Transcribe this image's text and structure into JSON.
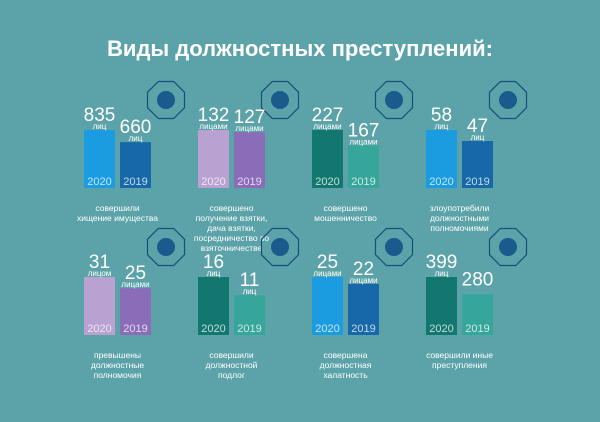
{
  "title": "Виды должностных преступлений:",
  "chart_data": [
    {
      "type": "bar",
      "categories": [
        "2020",
        "2019"
      ],
      "values": [
        835,
        660
      ],
      "units": [
        "лиц",
        "лиц"
      ],
      "colors": [
        "#1b9ce0",
        "#1668a8"
      ],
      "caption": [
        "совершили",
        "хищение имущества"
      ]
    },
    {
      "type": "bar",
      "categories": [
        "2020",
        "2019"
      ],
      "values": [
        132,
        127
      ],
      "units": [
        "лицами",
        "лицами"
      ],
      "colors": [
        "#b9a1d2",
        "#8a6cb9"
      ],
      "caption": [
        "совершено",
        "получение взятки,",
        "дача взятки,",
        "посредничество во",
        "взяточничестве"
      ]
    },
    {
      "type": "bar",
      "categories": [
        "2020",
        "2019"
      ],
      "values": [
        227,
        167
      ],
      "units": [
        "лицами",
        "лицами"
      ],
      "colors": [
        "#12776e",
        "#36a69b"
      ],
      "caption": [
        "совершено",
        "мошенничество"
      ]
    },
    {
      "type": "bar",
      "categories": [
        "2020",
        "2019"
      ],
      "values": [
        58,
        47
      ],
      "units": [
        "лиц",
        "лиц"
      ],
      "colors": [
        "#1b9ce0",
        "#1668a8"
      ],
      "caption": [
        "злоупотребили",
        "должностными",
        "полномочиями"
      ]
    },
    {
      "type": "bar",
      "categories": [
        "2020",
        "2019"
      ],
      "values": [
        31,
        25
      ],
      "units": [
        "лицом",
        "лицами"
      ],
      "colors": [
        "#b9a1d2",
        "#8a6cb9"
      ],
      "caption": [
        "превышены",
        "должностные",
        "полномочия"
      ]
    },
    {
      "type": "bar",
      "categories": [
        "2020",
        "2019"
      ],
      "values": [
        16,
        11
      ],
      "units": [
        "лиц",
        "лиц"
      ],
      "colors": [
        "#12776e",
        "#36a69b"
      ],
      "caption": [
        "совершили",
        "должностной",
        "подлог"
      ]
    },
    {
      "type": "bar",
      "categories": [
        "2020",
        "2019"
      ],
      "values": [
        25,
        22
      ],
      "units": [
        "лицами",
        "лицами"
      ],
      "colors": [
        "#1b9ce0",
        "#1668a8"
      ],
      "caption": [
        "совершена",
        "должностная",
        "халатность"
      ]
    },
    {
      "type": "bar",
      "categories": [
        "2020",
        "2019"
      ],
      "values": [
        399,
        280
      ],
      "units": [
        "лиц",
        null
      ],
      "colors": [
        "#12776e",
        "#36a69b"
      ],
      "caption": [
        "совершили иные",
        "преступления"
      ]
    }
  ]
}
